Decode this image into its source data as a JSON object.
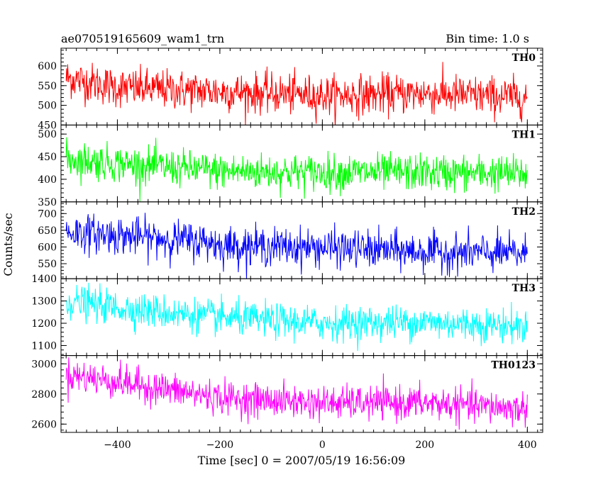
{
  "header": {
    "title": "ae070519165609_wam1_trn",
    "bin_time": "Bin time: 1.0 s"
  },
  "chart_data": {
    "type": "line",
    "title": "ae070519165609_wam1_trn",
    "xlabel": "Time [sec] 0 = 2007/05/19 16:56:09",
    "ylabel": "Counts/sec",
    "xlim": [
      -510,
      430
    ],
    "x_ticks": [
      -400,
      -200,
      0,
      200,
      400
    ],
    "x_step": 1.0,
    "grid": false,
    "panels": [
      {
        "name": "TH0",
        "color": "#ff0000",
        "ylim": [
          450,
          645
        ],
        "y_ticks": [
          450,
          500,
          550,
          600
        ],
        "noise": 25,
        "trend": [
          [
            -500,
            570
          ],
          [
            -400,
            545
          ],
          [
            -200,
            535
          ],
          [
            0,
            525
          ],
          [
            200,
            530
          ],
          [
            400,
            520
          ]
        ]
      },
      {
        "name": "TH1",
        "color": "#00ff00",
        "ylim": [
          350,
          520
        ],
        "y_ticks": [
          350,
          400,
          450,
          500
        ],
        "noise": 20,
        "trend": [
          [
            -500,
            445
          ],
          [
            -400,
            435
          ],
          [
            -200,
            418
          ],
          [
            0,
            415
          ],
          [
            200,
            415
          ],
          [
            400,
            412
          ]
        ]
      },
      {
        "name": "TH2",
        "color": "#0000ff",
        "ylim": [
          505,
          735
        ],
        "y_ticks": [
          550,
          600,
          650,
          700
        ],
        "noise": 28,
        "trend": [
          [
            -500,
            645
          ],
          [
            -400,
            635
          ],
          [
            -220,
            615
          ],
          [
            -200,
            605
          ],
          [
            0,
            598
          ],
          [
            200,
            585
          ],
          [
            400,
            580
          ]
        ]
      },
      {
        "name": "TH3",
        "color": "#00ffff",
        "ylim": [
          1055,
          1400
        ],
        "y_ticks": [
          1100,
          1200,
          1300,
          1400
        ],
        "noise": 38,
        "trend": [
          [
            -500,
            1300
          ],
          [
            -400,
            1270
          ],
          [
            -200,
            1225
          ],
          [
            0,
            1200
          ],
          [
            200,
            1205
          ],
          [
            400,
            1185
          ]
        ]
      },
      {
        "name": "TH0123",
        "color": "#ff00ff",
        "ylim": [
          2545,
          3055
        ],
        "y_ticks": [
          2600,
          2800,
          3000
        ],
        "noise": 55,
        "trend": [
          [
            -500,
            2930
          ],
          [
            -400,
            2880
          ],
          [
            -200,
            2775
          ],
          [
            0,
            2740
          ],
          [
            200,
            2740
          ],
          [
            400,
            2700
          ]
        ]
      }
    ]
  }
}
